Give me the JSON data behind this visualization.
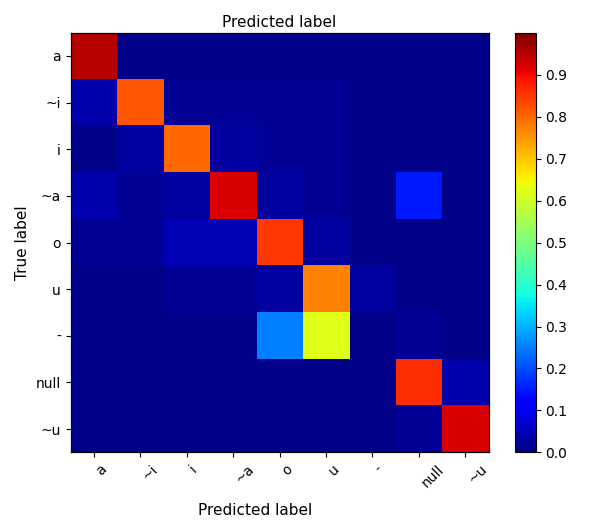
{
  "labels": [
    "a",
    "~i",
    "i",
    "~a",
    "o",
    "u",
    "-",
    "null",
    "~u"
  ],
  "matrix": [
    [
      0.95,
      0.01,
      0.01,
      0.01,
      0.01,
      0.01,
      0.01,
      0.01,
      0.01
    ],
    [
      0.04,
      0.82,
      0.02,
      0.02,
      0.02,
      0.02,
      0.01,
      0.01,
      0.01
    ],
    [
      0.01,
      0.03,
      0.8,
      0.03,
      0.02,
      0.02,
      0.01,
      0.01,
      0.01
    ],
    [
      0.04,
      0.02,
      0.03,
      0.92,
      0.03,
      0.02,
      0.01,
      0.15,
      0.01
    ],
    [
      0.02,
      0.02,
      0.05,
      0.05,
      0.85,
      0.03,
      0.01,
      0.01,
      0.01
    ],
    [
      0.01,
      0.01,
      0.02,
      0.02,
      0.03,
      0.77,
      0.03,
      0.01,
      0.01
    ],
    [
      0.01,
      0.01,
      0.01,
      0.01,
      0.25,
      0.62,
      0.01,
      0.02,
      0.01
    ],
    [
      0.01,
      0.01,
      0.01,
      0.01,
      0.01,
      0.01,
      0.01,
      0.86,
      0.04
    ],
    [
      0.01,
      0.01,
      0.01,
      0.01,
      0.01,
      0.01,
      0.01,
      0.02,
      0.92
    ]
  ],
  "xlabel": "Predicted label",
  "ylabel": "True label",
  "colormap": "jet",
  "vmin": 0.0,
  "vmax": 1.0,
  "colorbar_ticks": [
    0.0,
    0.1,
    0.2,
    0.3,
    0.4,
    0.5,
    0.6,
    0.7,
    0.8,
    0.9
  ],
  "colorbar_ticklabels": [
    "0.0",
    "0.1",
    "0.2",
    "0.3",
    "0.4",
    "0.5",
    "0.6",
    "0.7",
    "0.8",
    "0.9"
  ],
  "figsize": [
    6.08,
    5.26
  ],
  "dpi": 100,
  "xlabel_fontsize": 11,
  "ylabel_fontsize": 11,
  "tick_fontsize": 10
}
